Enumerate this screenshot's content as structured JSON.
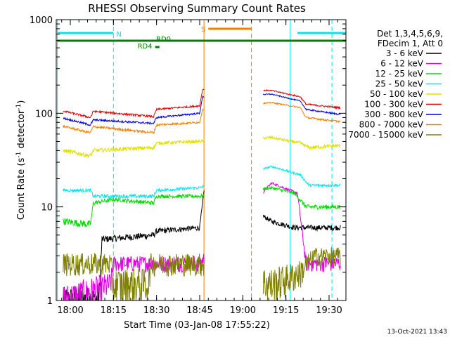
{
  "chart_data": {
    "type": "line",
    "title": "RHESSI Observing Summary Count Rates",
    "xlabel": "Start Time (03-Jan-08 17:55:22)",
    "ylabel_main": "Count Rate (s",
    "ylabel_exp": "-1",
    "ylabel_mid": " detector",
    "ylabel_end": ")",
    "yscale": "log",
    "ylim": [
      1,
      1000
    ],
    "xlim_minutes": [
      -4.5,
      32.5
    ],
    "x_ticks": [
      {
        "label": "18:00",
        "min": 0
      },
      {
        "label": "18:15",
        "min": 15
      },
      {
        "label": "18:30",
        "min": 30
      },
      {
        "label": "18:45",
        "min": 45
      },
      {
        "label": "19:00",
        "min": 60
      },
      {
        "label": "19:15",
        "min": 75
      },
      {
        "label": "19:30",
        "min": 90
      }
    ],
    "y_ticks": [
      {
        "label": "1",
        "v": 1
      },
      {
        "label": "10",
        "v": 10
      },
      {
        "label": "100",
        "v": 100
      },
      {
        "label": "1000",
        "v": 1000
      }
    ],
    "legend_header": [
      "Det 1,3,4,5,6,9,",
      "FDecim 1, Att 0"
    ],
    "legend_placement": "right",
    "footer_stamp": "13-Oct-2021 13:43",
    "flags": [
      {
        "label": "N",
        "color": "#00e5ee",
        "segments": [
          [
            -4.5,
            15
          ],
          [
            79,
            97
          ]
        ],
        "y": 47
      },
      {
        "label": "S",
        "color": "#f08000",
        "segments": [
          [
            48,
            63
          ]
        ],
        "y": 41
      },
      {
        "label": "RD0",
        "color": "#008000",
        "segments": [
          [
            -4.5,
            97
          ]
        ],
        "y": 58
      },
      {
        "label": "RD4",
        "color": "#008000",
        "segments": [
          [
            29.5,
            31
          ]
        ],
        "y": 67
      }
    ],
    "vlines": [
      {
        "min": -4.5,
        "color": "#00e5ee",
        "style": "solid"
      },
      {
        "min": 15,
        "color": "#00e5ee",
        "style": "dashed"
      },
      {
        "min": 46.5,
        "color": "#f08000",
        "style": "solid"
      },
      {
        "min": 63,
        "color": "#f08000",
        "style": "dashed"
      },
      {
        "min": 76.5,
        "color": "#00e5ee",
        "style": "solid"
      },
      {
        "min": 91,
        "color": "#00e5ee",
        "style": "dashed"
      }
    ],
    "series": [
      {
        "name": "3 - 6 keV",
        "color": "#000000",
        "noise": 0.4,
        "pts": [
          [
            -2,
            1
          ],
          [
            10,
            1
          ],
          [
            11,
            4.5
          ],
          [
            29,
            5
          ],
          [
            30,
            5.5
          ],
          [
            45,
            6
          ],
          [
            47,
            20
          ],
          [
            70,
            7
          ],
          [
            78,
            6
          ]
        ]
      },
      {
        "name": "6 - 12 keV",
        "color": "#e000e0",
        "noise": 0.5,
        "pts": [
          [
            -2,
            1
          ],
          [
            14,
            1.5
          ],
          [
            15,
            2.5
          ],
          [
            45,
            2.5
          ],
          [
            70,
            18
          ],
          [
            79,
            14
          ],
          [
            82,
            2.5
          ],
          [
            93,
            2.5
          ]
        ]
      },
      {
        "name": "12 - 25 keV",
        "color": "#00dd00",
        "noise": 0.6,
        "pts": [
          [
            -2,
            7
          ],
          [
            7,
            6.5
          ],
          [
            8,
            11
          ],
          [
            15,
            12
          ],
          [
            29,
            11
          ],
          [
            30,
            13
          ],
          [
            45,
            13
          ],
          [
            70,
            16
          ],
          [
            78,
            14
          ],
          [
            82,
            10
          ],
          [
            93,
            10
          ]
        ]
      },
      {
        "name": "25 - 50 keV",
        "color": "#00e5ee",
        "noise": 0.6,
        "pts": [
          [
            -2,
            15
          ],
          [
            7,
            15
          ],
          [
            8,
            13
          ],
          [
            29,
            13
          ],
          [
            30,
            15
          ],
          [
            45,
            16
          ],
          [
            70,
            27
          ],
          [
            80,
            22
          ],
          [
            83,
            17
          ],
          [
            93,
            17
          ]
        ]
      },
      {
        "name": "50 - 100 keV",
        "color": "#e0e000",
        "noise": 2.0,
        "pts": [
          [
            -2,
            40
          ],
          [
            7,
            35
          ],
          [
            8,
            40
          ],
          [
            29,
            43
          ],
          [
            30,
            48
          ],
          [
            45,
            50
          ],
          [
            70,
            55
          ],
          [
            80,
            48
          ],
          [
            83,
            43
          ],
          [
            93,
            45
          ]
        ]
      },
      {
        "name": "100 - 300 keV",
        "color": "#e00000",
        "noise": 2.5,
        "pts": [
          [
            -2,
            105
          ],
          [
            7,
            90
          ],
          [
            8,
            105
          ],
          [
            29,
            92
          ],
          [
            30,
            110
          ],
          [
            45,
            120
          ],
          [
            46,
            180
          ],
          [
            70,
            175
          ],
          [
            80,
            150
          ],
          [
            82,
            125
          ],
          [
            93,
            115
          ]
        ]
      },
      {
        "name": "300 - 800 keV",
        "color": "#0000e0",
        "noise": 2.0,
        "pts": [
          [
            -2,
            88
          ],
          [
            7,
            75
          ],
          [
            8,
            85
          ],
          [
            29,
            78
          ],
          [
            30,
            90
          ],
          [
            45,
            100
          ],
          [
            46,
            150
          ],
          [
            70,
            160
          ],
          [
            80,
            135
          ],
          [
            82,
            110
          ],
          [
            93,
            98
          ]
        ]
      },
      {
        "name": "800 - 7000 keV",
        "color": "#f08000",
        "noise": 2.0,
        "pts": [
          [
            -2,
            72
          ],
          [
            7,
            62
          ],
          [
            8,
            72
          ],
          [
            29,
            62
          ],
          [
            30,
            75
          ],
          [
            45,
            80
          ],
          [
            46,
            110
          ],
          [
            70,
            130
          ],
          [
            80,
            115
          ],
          [
            82,
            90
          ],
          [
            93,
            82
          ]
        ]
      },
      {
        "name": "7000 - 15000 keV",
        "color": "#808000",
        "noise": 0.7,
        "pts": [
          [
            -2,
            2.5
          ],
          [
            14,
            2.5
          ],
          [
            15,
            1.5
          ],
          [
            27,
            1.5
          ],
          [
            28,
            2.5
          ],
          [
            45,
            2.5
          ],
          [
            70,
            1.5
          ],
          [
            80,
            2
          ],
          [
            85,
            3
          ],
          [
            93,
            3
          ]
        ]
      }
    ]
  }
}
